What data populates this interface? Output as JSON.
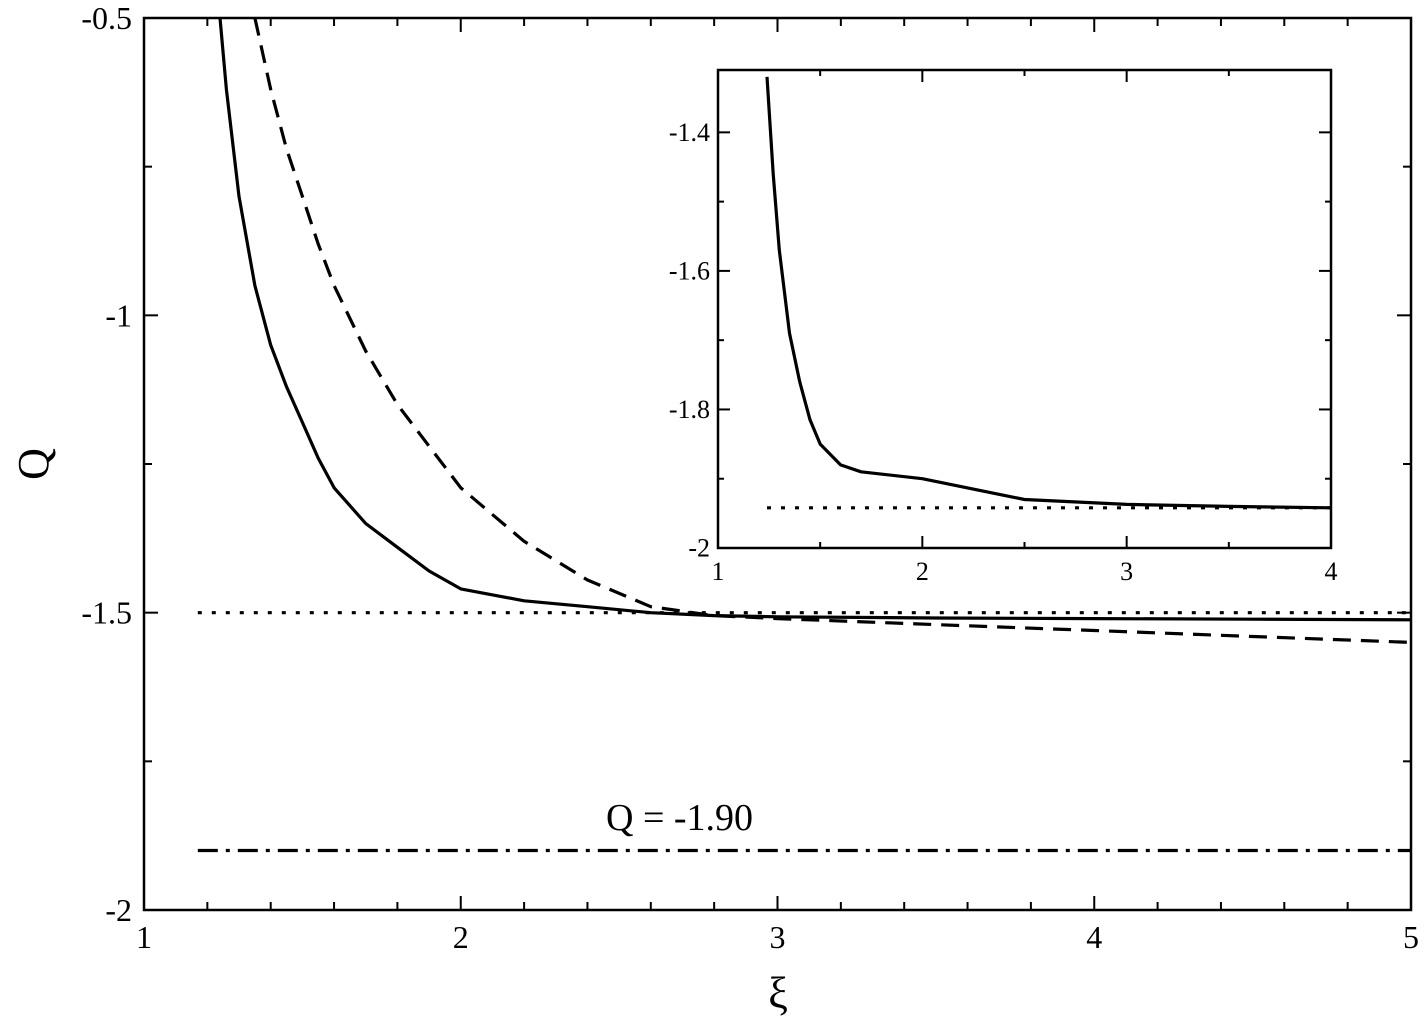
{
  "chart_data": [
    {
      "id": "main",
      "type": "line",
      "xlabel": "ξ",
      "ylabel": "Q",
      "xlim": [
        1,
        5
      ],
      "ylim": [
        -2,
        -0.5
      ],
      "xticks": [
        1,
        2,
        3,
        4,
        5
      ],
      "xtick_labels": [
        "1",
        "2",
        "3",
        "4",
        "5"
      ],
      "yticks": [
        -2,
        -1.5,
        -1,
        -0.5
      ],
      "ytick_labels": [
        "-2",
        "-1.5",
        "-1",
        "-0.5"
      ],
      "minor_xtick_step": 0.2,
      "minor_ytick_step": 0.25,
      "grid": false,
      "legend": "none",
      "annotations": [
        {
          "text": "Q = -1.90",
          "x": 2.5,
          "y": -1.83
        }
      ],
      "series": [
        {
          "style": "solid",
          "x": [
            1.24,
            1.26,
            1.3,
            1.35,
            1.4,
            1.45,
            1.5,
            1.55,
            1.6,
            1.7,
            1.8,
            1.9,
            2.0,
            2.2,
            2.4,
            2.6,
            2.8,
            3.0,
            3.5,
            4.0,
            4.5,
            5.0
          ],
          "y": [
            -0.5,
            -0.62,
            -0.8,
            -0.95,
            -1.05,
            -1.12,
            -1.18,
            -1.24,
            -1.29,
            -1.35,
            -1.39,
            -1.43,
            -1.46,
            -1.48,
            -1.49,
            -1.5,
            -1.505,
            -1.507,
            -1.509,
            -1.51,
            -1.511,
            -1.512
          ]
        },
        {
          "style": "dashed",
          "x": [
            1.35,
            1.4,
            1.45,
            1.5,
            1.55,
            1.6,
            1.7,
            1.8,
            1.9,
            2.0,
            2.2,
            2.4,
            2.6,
            2.8,
            3.0,
            3.5,
            4.0,
            4.5,
            5.0
          ],
          "y": [
            -0.5,
            -0.62,
            -0.72,
            -0.8,
            -0.88,
            -0.95,
            -1.06,
            -1.15,
            -1.22,
            -1.29,
            -1.38,
            -1.445,
            -1.49,
            -1.505,
            -1.51,
            -1.52,
            -1.53,
            -1.54,
            -1.55
          ]
        },
        {
          "style": "dotted",
          "x": [
            1.17,
            5.0
          ],
          "y": [
            -1.5,
            -1.5
          ]
        },
        {
          "style": "dashdot",
          "x": [
            1.17,
            5.0
          ],
          "y": [
            -1.9,
            -1.9
          ]
        }
      ]
    },
    {
      "id": "inset",
      "type": "line",
      "xlabel": "",
      "ylabel": "",
      "xlim": [
        1,
        4
      ],
      "ylim": [
        -2,
        -1.31
      ],
      "xticks": [
        1,
        2,
        3,
        4
      ],
      "xtick_labels": [
        "1",
        "2",
        "3",
        "4"
      ],
      "yticks": [
        -2,
        -1.8,
        -1.6,
        -1.4
      ],
      "ytick_labels": [
        "-2",
        "-1.8",
        "-1.6",
        "-1.4"
      ],
      "minor_xtick_step": 0.5,
      "minor_ytick_step": 0.1,
      "grid": false,
      "legend": "none",
      "series": [
        {
          "style": "solid",
          "x": [
            1.24,
            1.27,
            1.3,
            1.35,
            1.4,
            1.45,
            1.5,
            1.55,
            1.6,
            1.7,
            2.0,
            2.5,
            3.0,
            3.5,
            4.0
          ],
          "y": [
            -1.32,
            -1.46,
            -1.57,
            -1.69,
            -1.76,
            -1.815,
            -1.85,
            -1.865,
            -1.88,
            -1.89,
            -1.9,
            -1.93,
            -1.937,
            -1.94,
            -1.942
          ]
        },
        {
          "style": "dotted",
          "x": [
            1.24,
            4.0
          ],
          "y": [
            -1.942,
            -1.942
          ]
        }
      ]
    }
  ]
}
